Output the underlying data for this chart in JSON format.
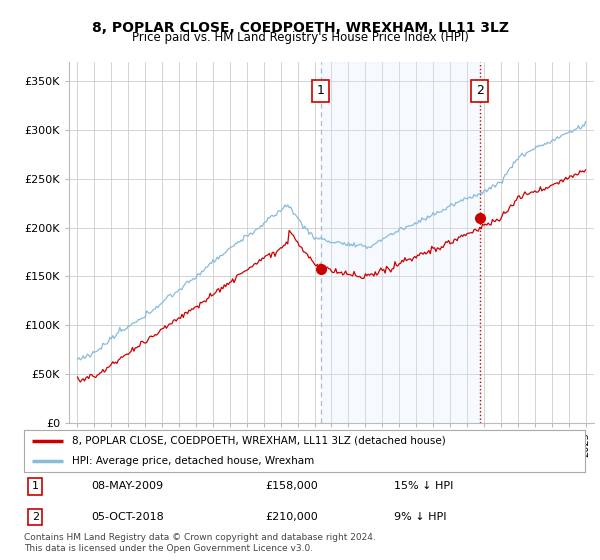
{
  "title": "8, POPLAR CLOSE, COEDPOETH, WREXHAM, LL11 3LZ",
  "subtitle": "Price paid vs. HM Land Registry's House Price Index (HPI)",
  "ylabel_ticks": [
    "£0",
    "£50K",
    "£100K",
    "£150K",
    "£200K",
    "£250K",
    "£300K",
    "£350K"
  ],
  "yvalues": [
    0,
    50000,
    100000,
    150000,
    200000,
    250000,
    300000,
    350000
  ],
  "ylim": [
    0,
    370000
  ],
  "xlim_start": 1994.5,
  "xlim_end": 2025.5,
  "transaction1_date": 2009.356,
  "transaction1_price": 158000,
  "transaction2_date": 2018.753,
  "transaction2_price": 210000,
  "line_color_price": "#cc0000",
  "line_color_hpi": "#88bbdd",
  "shade_color": "#ddeeff",
  "vline1_color": "#aabbcc",
  "vline2_color": "#cc0000",
  "marker_color": "#cc0000",
  "legend_label_price": "8, POPLAR CLOSE, COEDPOETH, WREXHAM, LL11 3LZ (detached house)",
  "legend_label_hpi": "HPI: Average price, detached house, Wrexham",
  "footer": "Contains HM Land Registry data © Crown copyright and database right 2024.\nThis data is licensed under the Open Government Licence v3.0.",
  "background_color": "#ffffff",
  "grid_color": "#cccccc"
}
